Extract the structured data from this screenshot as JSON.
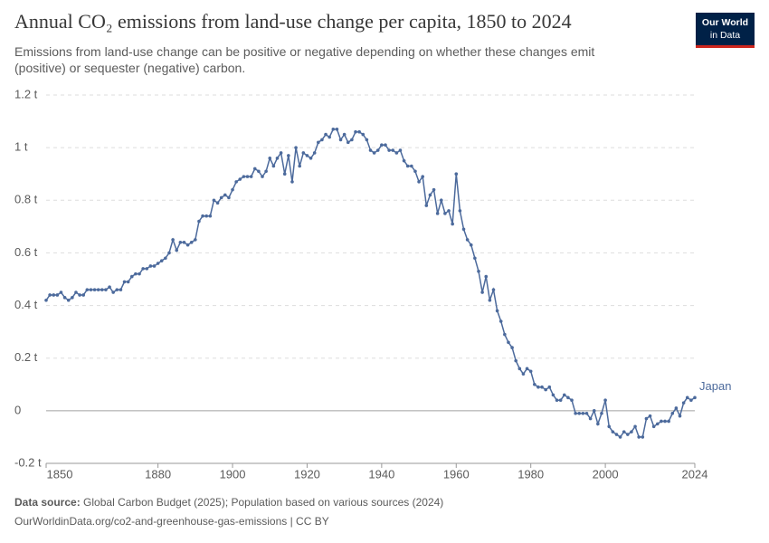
{
  "chart_data": {
    "type": "line",
    "title": "Annual CO₂ emissions from land-use change per capita, 1850 to 2024",
    "subtitle": "Emissions from land-use change can be positive or negative depending on whether these changes emit (positive) or sequester (negative) carbon.",
    "logo": [
      "Our World",
      "in Data"
    ],
    "source_label": "Data source:",
    "source": "Global Carbon Budget (2025); Population based on various sources (2024)",
    "url": "OurWorldinData.org/co2-and-greenhouse-gas-emissions | CC BY",
    "x": [
      1850,
      1851,
      1852,
      1853,
      1854,
      1855,
      1856,
      1857,
      1858,
      1859,
      1860,
      1861,
      1862,
      1863,
      1864,
      1865,
      1866,
      1867,
      1868,
      1869,
      1870,
      1871,
      1872,
      1873,
      1874,
      1875,
      1876,
      1877,
      1878,
      1879,
      1880,
      1881,
      1882,
      1883,
      1884,
      1885,
      1886,
      1887,
      1888,
      1889,
      1890,
      1891,
      1892,
      1893,
      1894,
      1895,
      1896,
      1897,
      1898,
      1899,
      1900,
      1901,
      1902,
      1903,
      1904,
      1905,
      1906,
      1907,
      1908,
      1909,
      1910,
      1911,
      1912,
      1913,
      1914,
      1915,
      1916,
      1917,
      1918,
      1919,
      1920,
      1921,
      1922,
      1923,
      1924,
      1925,
      1926,
      1927,
      1928,
      1929,
      1930,
      1931,
      1932,
      1933,
      1934,
      1935,
      1936,
      1937,
      1938,
      1939,
      1940,
      1941,
      1942,
      1943,
      1944,
      1945,
      1946,
      1947,
      1948,
      1949,
      1950,
      1951,
      1952,
      1953,
      1954,
      1955,
      1956,
      1957,
      1958,
      1959,
      1960,
      1961,
      1962,
      1963,
      1964,
      1965,
      1966,
      1967,
      1968,
      1969,
      1970,
      1971,
      1972,
      1973,
      1974,
      1975,
      1976,
      1977,
      1978,
      1979,
      1980,
      1981,
      1982,
      1983,
      1984,
      1985,
      1986,
      1987,
      1988,
      1989,
      1990,
      1991,
      1992,
      1993,
      1994,
      1995,
      1996,
      1997,
      1998,
      1999,
      2000,
      2001,
      2002,
      2003,
      2004,
      2005,
      2006,
      2007,
      2008,
      2009,
      2010,
      2011,
      2012,
      2013,
      2014,
      2015,
      2016,
      2017,
      2018,
      2019,
      2020,
      2021,
      2022,
      2023,
      2024
    ],
    "series": [
      {
        "name": "Japan",
        "color": "#4c6a9c",
        "values": [
          0.42,
          0.44,
          0.44,
          0.44,
          0.45,
          0.43,
          0.42,
          0.43,
          0.45,
          0.44,
          0.44,
          0.46,
          0.46,
          0.46,
          0.46,
          0.46,
          0.46,
          0.47,
          0.45,
          0.46,
          0.46,
          0.49,
          0.49,
          0.51,
          0.52,
          0.52,
          0.54,
          0.54,
          0.55,
          0.55,
          0.56,
          0.57,
          0.58,
          0.6,
          0.65,
          0.61,
          0.64,
          0.64,
          0.63,
          0.64,
          0.65,
          0.72,
          0.74,
          0.74,
          0.74,
          0.8,
          0.79,
          0.81,
          0.82,
          0.81,
          0.84,
          0.87,
          0.88,
          0.89,
          0.89,
          0.89,
          0.92,
          0.91,
          0.89,
          0.91,
          0.96,
          0.93,
          0.96,
          0.98,
          0.9,
          0.97,
          0.87,
          1.0,
          0.93,
          0.98,
          0.97,
          0.96,
          0.98,
          1.02,
          1.03,
          1.05,
          1.04,
          1.07,
          1.07,
          1.03,
          1.05,
          1.02,
          1.03,
          1.06,
          1.06,
          1.05,
          1.03,
          0.99,
          0.98,
          0.99,
          1.01,
          1.01,
          0.99,
          0.99,
          0.98,
          0.99,
          0.95,
          0.93,
          0.93,
          0.91,
          0.87,
          0.89,
          0.78,
          0.82,
          0.84,
          0.75,
          0.8,
          0.75,
          0.76,
          0.71,
          0.9,
          0.76,
          0.69,
          0.65,
          0.63,
          0.58,
          0.53,
          0.45,
          0.51,
          0.42,
          0.46,
          0.38,
          0.34,
          0.29,
          0.26,
          0.24,
          0.19,
          0.16,
          0.14,
          0.16,
          0.15,
          0.1,
          0.09,
          0.09,
          0.08,
          0.09,
          0.06,
          0.04,
          0.04,
          0.06,
          0.05,
          0.04,
          -0.01,
          -0.01,
          -0.01,
          -0.01,
          -0.03,
          0.0,
          -0.05,
          -0.01,
          0.04,
          -0.06,
          -0.08,
          -0.09,
          -0.1,
          -0.08,
          -0.09,
          -0.08,
          -0.06,
          -0.1,
          -0.1,
          -0.03,
          -0.02,
          -0.06,
          -0.05,
          -0.04,
          -0.04,
          -0.04,
          -0.01,
          0.01,
          -0.02,
          0.03,
          0.05,
          0.04,
          0.05
        ]
      }
    ],
    "xlim": [
      1850,
      2024
    ],
    "xticks": [
      1850,
      1880,
      1900,
      1920,
      1940,
      1960,
      1980,
      2000,
      2024
    ],
    "ylim": [
      -0.2,
      1.2
    ],
    "yticks": [
      {
        "value": -0.2,
        "label": "-0.2 t"
      },
      0,
      {
        "value": 0.2,
        "label": "0.2 t"
      },
      {
        "value": 0.4,
        "label": "0.4 t"
      },
      {
        "value": 0.6,
        "label": "0.6 t"
      },
      {
        "value": 0.8,
        "label": "0.8 t"
      },
      {
        "value": 1,
        "label": "1 t"
      },
      {
        "value": 1.2,
        "label": "1.2 t"
      }
    ],
    "grid": true
  }
}
